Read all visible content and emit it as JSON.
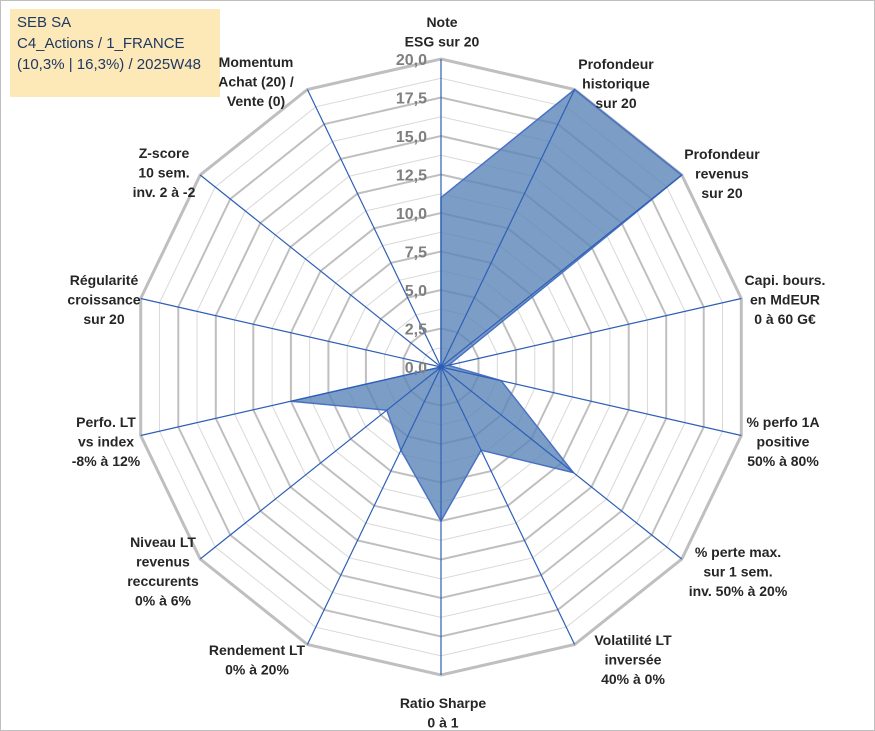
{
  "header": {
    "line1": "SEB SA",
    "line2": "C4_Actions / 1_FRANCE",
    "line3": "(10,3% | 16,3%) / 2025W48"
  },
  "colors": {
    "fill": "#5b86b8",
    "stroke": "#4a72c4",
    "spoke": "#2e5fb7",
    "ring_major": "#bfbfbf",
    "ring_minor": "#d9d9d9",
    "tick_text": "#7f7f7f",
    "label_text": "#262626",
    "title_bg": "#fde9b8",
    "title_text": "#1f3864"
  },
  "chart_data": {
    "type": "radar",
    "title": "",
    "rlim": [
      0,
      20
    ],
    "ticks": [
      "0,0",
      "2,5",
      "5,0",
      "7,5",
      "10,0",
      "12,5",
      "15,0",
      "17,5",
      "20,0"
    ],
    "categories": [
      [
        "Note",
        "ESG sur 20"
      ],
      [
        "Profondeur",
        "historique",
        "sur 20"
      ],
      [
        "Profondeur",
        "revenus",
        "sur 20"
      ],
      [
        "Capi. bours.",
        "en MdEUR",
        "0 à 60 G€"
      ],
      [
        "% perfo 1A",
        "positive",
        "50% à 80%"
      ],
      [
        "% perte max.",
        "sur 1 sem.",
        "inv. 50% à 20%"
      ],
      [
        "Volatilité LT",
        "inversée",
        "40% à 0%"
      ],
      [
        "Ratio Sharpe",
        "0 à 1"
      ],
      [
        "Rendement LT",
        "0% à 20%"
      ],
      [
        "Niveau LT",
        "revenus",
        "reccurents",
        "0% à 6%"
      ],
      [
        "Perfo. LT",
        "vs index",
        "-8% à 12%"
      ],
      [
        "Régularité",
        "croissance",
        "sur 20"
      ],
      [
        "Z-score",
        "10 sem.",
        "inv. 2 à -2"
      ],
      [
        "Momentum",
        "Achat (20) /",
        "Vente (0)"
      ]
    ],
    "series": [
      {
        "values": [
          11.0,
          20.0,
          20.0,
          0.5,
          4.0,
          11.0,
          6.0,
          10.0,
          6.0,
          4.5,
          10.0,
          0.0,
          0.0,
          0.0
        ]
      }
    ],
    "grid": true,
    "legend": "none"
  }
}
